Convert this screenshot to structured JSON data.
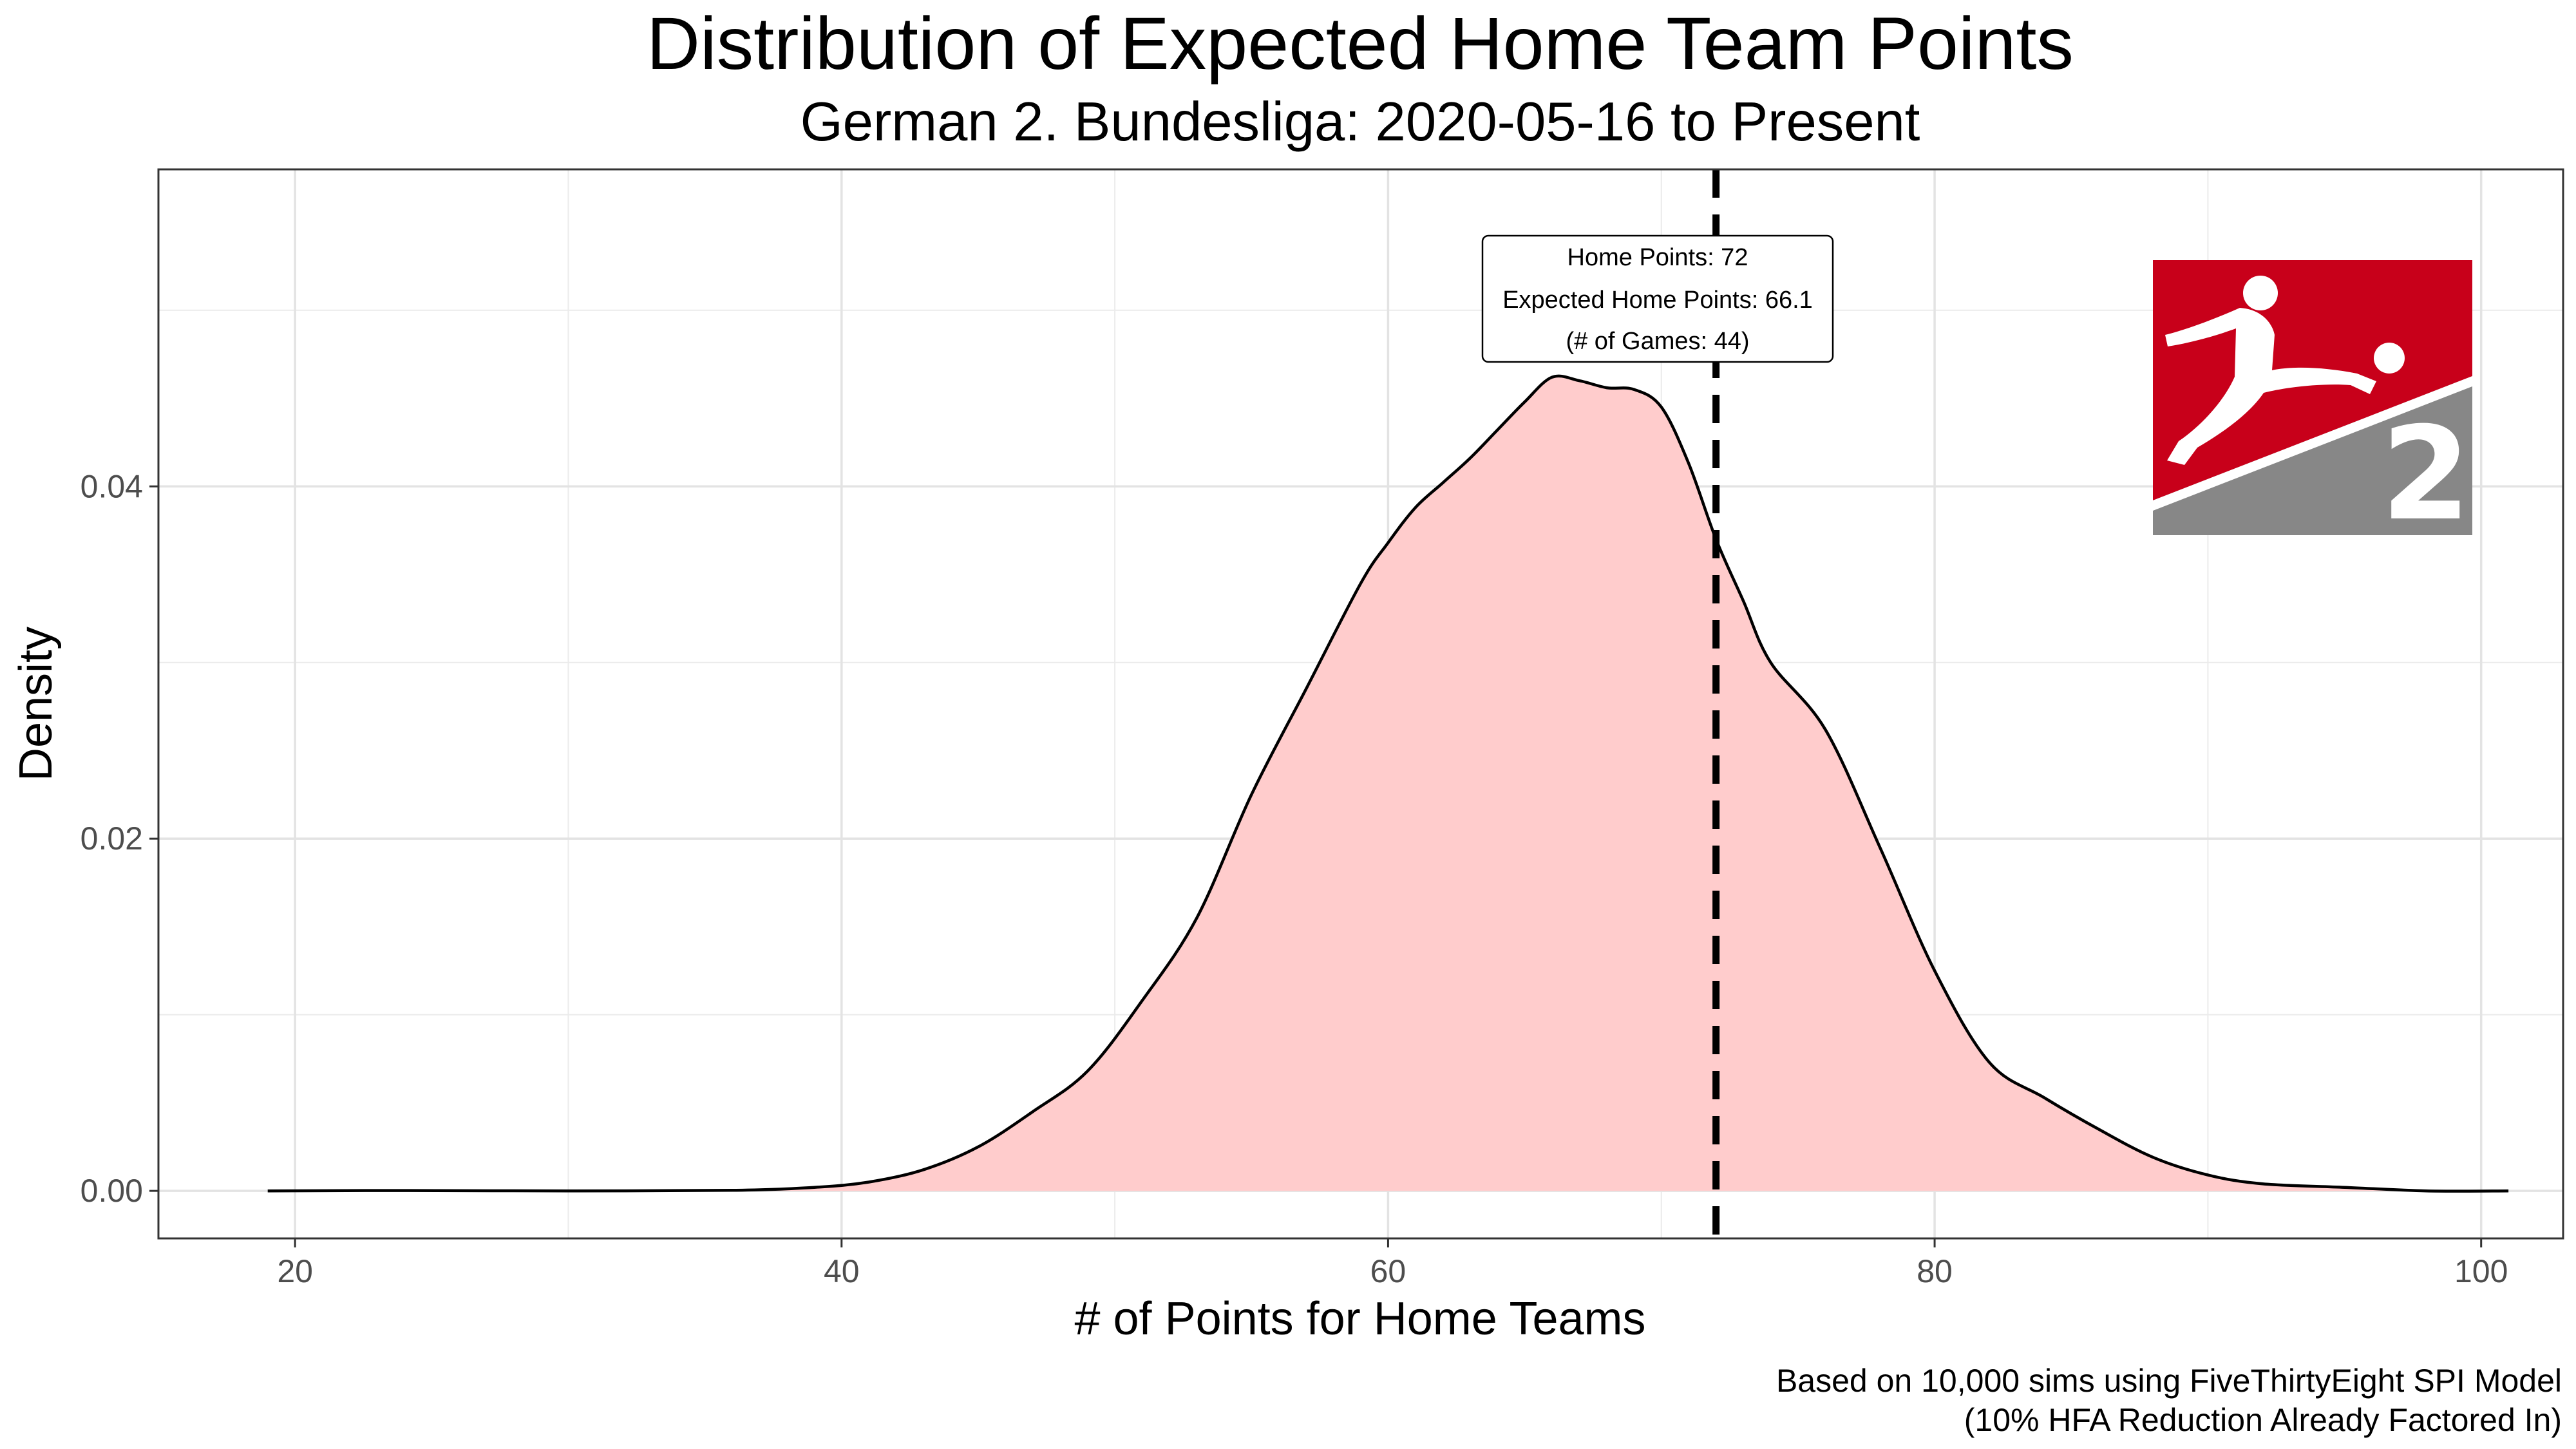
{
  "chart_data": {
    "type": "area",
    "title": "Distribution of Expected Home Team Points",
    "subtitle": "German 2. Bundesliga: 2020-05-16 to Present",
    "xlabel": "# of Points for Home Teams",
    "ylabel": "Density",
    "xlim": [
      15,
      103
    ],
    "ylim": [
      -0.0027,
      0.058
    ],
    "x_ticks": [
      20,
      40,
      60,
      80,
      100
    ],
    "x_minor_ticks": [
      30,
      50,
      70,
      90
    ],
    "y_ticks": [
      0.0,
      0.02,
      0.04
    ],
    "y_minor_ticks": [
      0.01,
      0.03,
      0.05
    ],
    "x_tick_labels": [
      "20",
      "40",
      "60",
      "80",
      "100"
    ],
    "y_tick_labels": [
      "0.00",
      "0.02",
      "0.04"
    ],
    "grid": true,
    "fill_color": "#ffcccc",
    "line_color": "#000000",
    "density": {
      "x": [
        19,
        24,
        30,
        36,
        39,
        41,
        43,
        45,
        47,
        49,
        51,
        53,
        55,
        57,
        59,
        60,
        61,
        62,
        63,
        64,
        65,
        66,
        67,
        68,
        69,
        70,
        71,
        72,
        73,
        74,
        76,
        78,
        80,
        82,
        84,
        86,
        88,
        90,
        92,
        95,
        98,
        101
      ],
      "y": [
        0.0,
        2e-05,
        0.0,
        3e-05,
        0.0002,
        0.0005,
        0.0012,
        0.0025,
        0.0045,
        0.0068,
        0.0108,
        0.0155,
        0.0225,
        0.0285,
        0.0345,
        0.0368,
        0.0388,
        0.0402,
        0.0416,
        0.0432,
        0.0448,
        0.0462,
        0.046,
        0.0456,
        0.0455,
        0.0445,
        0.0413,
        0.037,
        0.0335,
        0.03,
        0.0262,
        0.0195,
        0.0125,
        0.0073,
        0.0053,
        0.0035,
        0.0019,
        0.0009,
        0.0004,
        0.0002,
        0.0,
        0.0
      ]
    },
    "reference_line": {
      "x": 72,
      "style": "dashed"
    },
    "annotation": {
      "lines": [
        "Home Points: 72",
        "Expected Home Points: 66.1",
        "(# of Games: 44)"
      ]
    },
    "caption": [
      "Based on 10,000 sims using FiveThirtyEight SPI Model",
      "(10% HFA Reduction Already Factored In)"
    ],
    "logo": {
      "name": "2-bundesliga-logo-icon",
      "text": "2",
      "colors": {
        "top": "#c8001a",
        "bottom": "#878787",
        "figure": "#ffffff"
      }
    }
  }
}
